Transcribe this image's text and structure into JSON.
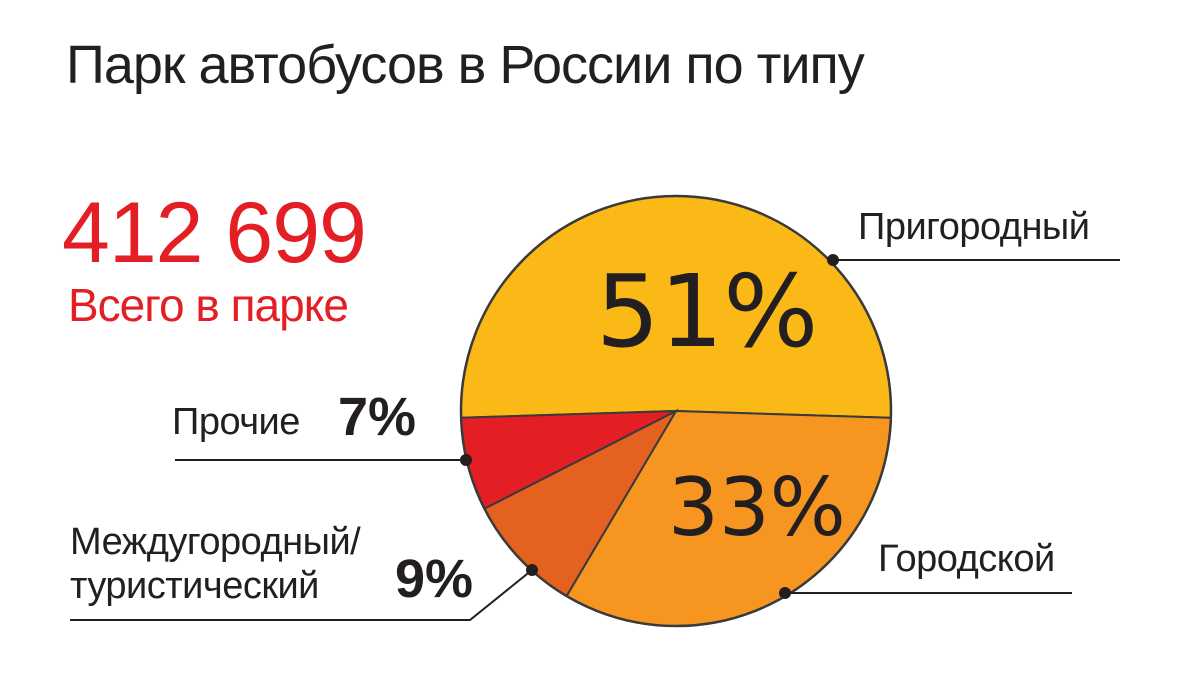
{
  "chart_data": {
    "type": "pie",
    "title": "Парк автобусов в России по типу",
    "total": "412 699",
    "total_label": "Всего в парке",
    "categories": [
      "Пригородный",
      "Городской",
      "Междугородный/\nтуристический",
      "Прочие"
    ],
    "values": [
      51,
      33,
      9,
      7
    ],
    "value_labels": [
      "51%",
      "33%",
      "9%",
      "7%"
    ],
    "colors": [
      "#fbb917",
      "#f6951f",
      "#e4611f",
      "#e31e24"
    ]
  }
}
